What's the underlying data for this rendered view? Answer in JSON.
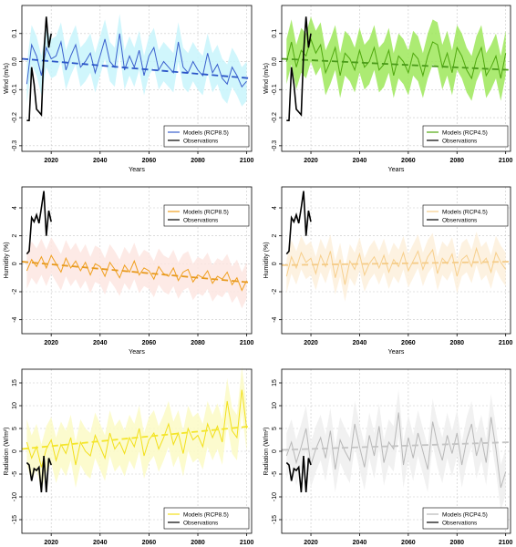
{
  "chart_data": [
    {
      "type": "line",
      "xlabel": "Years",
      "ylabel": "Wind (m/s)",
      "xlim": [
        2008,
        2102
      ],
      "ylim": [
        -0.32,
        0.2
      ],
      "xticks": [
        2020,
        2040,
        2060,
        2080,
        2100
      ],
      "yticks": [
        -0.3,
        -0.2,
        -0.1,
        0.0,
        0.1
      ],
      "ytick_labels": [
        "-0.3",
        "-0.2",
        "-0.1",
        "0.0",
        "0.1"
      ],
      "grid": true,
      "legend_position": "bottom-right",
      "series": [
        {
          "name": "Models (RCP8.5)",
          "color": "#3a5fcd",
          "band_color": "#c8f4fc",
          "trend_color": "#2c56c8",
          "x": [
            2010,
            2012,
            2014,
            2016,
            2018,
            2020,
            2022,
            2024,
            2026,
            2028,
            2030,
            2032,
            2034,
            2036,
            2038,
            2040,
            2042,
            2044,
            2046,
            2048,
            2050,
            2052,
            2054,
            2056,
            2058,
            2060,
            2062,
            2064,
            2066,
            2068,
            2070,
            2072,
            2074,
            2076,
            2078,
            2080,
            2082,
            2084,
            2086,
            2088,
            2090,
            2092,
            2094,
            2096,
            2098,
            2100
          ],
          "values": [
            -0.08,
            0.06,
            0.02,
            -0.05,
            0.05,
            0.01,
            0.02,
            0.07,
            -0.03,
            0.02,
            0.06,
            -0.02,
            0.0,
            0.03,
            -0.04,
            0.02,
            0.08,
            0.0,
            -0.02,
            0.1,
            -0.03,
            0.02,
            -0.02,
            0.04,
            -0.05,
            0.02,
            0.05,
            -0.03,
            0.0,
            -0.02,
            -0.04,
            0.07,
            -0.02,
            -0.04,
            0.0,
            -0.03,
            -0.05,
            0.03,
            -0.04,
            -0.01,
            -0.06,
            -0.08,
            -0.02,
            -0.05,
            -0.09,
            -0.07
          ],
          "band_half_width": 0.07,
          "trend": [
            0.01,
            -0.06
          ]
        },
        {
          "name": "Observations",
          "color": "#000000",
          "x": [
            2010,
            2011,
            2012,
            2013,
            2014,
            2015,
            2016,
            2017,
            2018,
            2019,
            2020
          ],
          "values": [
            -0.21,
            -0.21,
            -0.02,
            -0.08,
            -0.17,
            -0.18,
            -0.19,
            0.03,
            0.16,
            0.05,
            0.1
          ]
        }
      ]
    },
    {
      "type": "line",
      "xlabel": "Years",
      "ylabel": "Wind (m/s)",
      "xlim": [
        2008,
        2102
      ],
      "ylim": [
        -0.32,
        0.2
      ],
      "xticks": [
        2020,
        2040,
        2060,
        2080,
        2100
      ],
      "yticks": [
        -0.3,
        -0.2,
        -0.1,
        0.0,
        0.1
      ],
      "ytick_labels": [
        "-0.3",
        "-0.2",
        "-0.1",
        "0.0",
        "0.1"
      ],
      "grid": true,
      "legend_position": "bottom-right",
      "series": [
        {
          "name": "Models (RCP4.5)",
          "color": "#4fa80e",
          "band_color": "#9ee75a",
          "trend_color": "#4a9a1a",
          "x": [
            2010,
            2012,
            2014,
            2016,
            2018,
            2020,
            2022,
            2024,
            2026,
            2028,
            2030,
            2032,
            2034,
            2036,
            2038,
            2040,
            2042,
            2044,
            2046,
            2048,
            2050,
            2052,
            2054,
            2056,
            2058,
            2060,
            2062,
            2064,
            2066,
            2068,
            2070,
            2072,
            2074,
            2076,
            2078,
            2080,
            2082,
            2084,
            2086,
            2088,
            2090,
            2092,
            2094,
            2096,
            2098,
            2100
          ],
          "values": [
            0.0,
            0.07,
            -0.02,
            0.04,
            0.02,
            0.08,
            0.03,
            0.06,
            -0.04,
            0.0,
            0.05,
            -0.05,
            0.03,
            0.01,
            -0.03,
            0.04,
            -0.02,
            0.0,
            0.05,
            -0.03,
            -0.01,
            0.04,
            -0.05,
            0.02,
            0.0,
            -0.04,
            0.03,
            0.01,
            -0.05,
            0.02,
            0.07,
            0.06,
            -0.02,
            0.03,
            -0.04,
            0.05,
            0.02,
            -0.03,
            -0.06,
            0.01,
            0.05,
            -0.05,
            -0.02,
            0.02,
            -0.06,
            0.03
          ],
          "band_half_width": 0.08,
          "trend": [
            0.01,
            -0.03
          ]
        },
        {
          "name": "Observations",
          "color": "#000000",
          "x": [
            2010,
            2011,
            2012,
            2013,
            2014,
            2015,
            2016,
            2017,
            2018,
            2019,
            2020
          ],
          "values": [
            -0.21,
            -0.21,
            -0.02,
            -0.08,
            -0.17,
            -0.18,
            -0.19,
            0.03,
            0.16,
            0.05,
            0.1
          ]
        }
      ]
    },
    {
      "type": "line",
      "xlabel": "Years",
      "ylabel": "Humidity (%)",
      "xlim": [
        2008,
        2102
      ],
      "ylim": [
        -5,
        5.5
      ],
      "xticks": [
        2020,
        2040,
        2060,
        2080,
        2100
      ],
      "yticks": [
        -4,
        -2,
        0,
        2,
        4
      ],
      "ytick_labels": [
        "-4",
        "-2",
        "0",
        "2",
        "4"
      ],
      "grid": true,
      "legend_position": "top-right",
      "series": [
        {
          "name": "Models (RCP8.5)",
          "color": "#f0a020",
          "band_color": "#fde6e2",
          "trend_color": "#e89a1e",
          "x": [
            2010,
            2012,
            2014,
            2016,
            2018,
            2020,
            2022,
            2024,
            2026,
            2028,
            2030,
            2032,
            2034,
            2036,
            2038,
            2040,
            2042,
            2044,
            2046,
            2048,
            2050,
            2052,
            2054,
            2056,
            2058,
            2060,
            2062,
            2064,
            2066,
            2068,
            2070,
            2072,
            2074,
            2076,
            2078,
            2080,
            2082,
            2084,
            2086,
            2088,
            2090,
            2092,
            2094,
            2096,
            2098,
            2100
          ],
          "values": [
            -0.5,
            0.3,
            -0.2,
            0.5,
            -0.3,
            0.6,
            0.0,
            -0.6,
            0.4,
            -0.3,
            0.2,
            -0.5,
            0.1,
            -0.8,
            0.0,
            -0.2,
            -0.9,
            0.1,
            -0.4,
            -1.0,
            -0.1,
            -0.6,
            0.2,
            -0.8,
            -0.3,
            -0.5,
            -1.1,
            -0.2,
            -0.7,
            -0.9,
            -0.3,
            -1.2,
            -0.6,
            -0.4,
            -1.3,
            -0.8,
            -1.0,
            -0.5,
            -1.4,
            -0.9,
            -1.1,
            -0.6,
            -1.5,
            -1.0,
            -1.9,
            -1.2
          ],
          "band_half_width": 1.3,
          "trend": [
            0.15,
            -1.35
          ]
        },
        {
          "name": "Observations",
          "color": "#000000",
          "x": [
            2010,
            2011,
            2012,
            2013,
            2014,
            2015,
            2016,
            2017,
            2018,
            2019,
            2020
          ],
          "values": [
            0.7,
            0.9,
            3.3,
            3.0,
            3.5,
            2.9,
            4.0,
            5.2,
            2.0,
            3.8,
            3.0
          ]
        }
      ]
    },
    {
      "type": "line",
      "xlabel": "Years",
      "ylabel": "Humidity (%)",
      "xlim": [
        2008,
        2102
      ],
      "ylim": [
        -5,
        5.5
      ],
      "xticks": [
        2020,
        2040,
        2060,
        2080,
        2100
      ],
      "yticks": [
        -4,
        -2,
        0,
        2,
        4
      ],
      "ytick_labels": [
        "-4",
        "-2",
        "0",
        "2",
        "4"
      ],
      "grid": true,
      "legend_position": "top-right",
      "series": [
        {
          "name": "Models (RCP4.5)",
          "color": "#f7cf8c",
          "band_color": "#fdf0dc",
          "trend_color": "#f5cc88",
          "x": [
            2010,
            2012,
            2014,
            2016,
            2018,
            2020,
            2022,
            2024,
            2026,
            2028,
            2030,
            2032,
            2034,
            2036,
            2038,
            2040,
            2042,
            2044,
            2046,
            2048,
            2050,
            2052,
            2054,
            2056,
            2058,
            2060,
            2062,
            2064,
            2066,
            2068,
            2070,
            2072,
            2074,
            2076,
            2078,
            2080,
            2082,
            2084,
            2086,
            2088,
            2090,
            2092,
            2094,
            2096,
            2098,
            2100
          ],
          "values": [
            -0.9,
            0.5,
            -0.3,
            0.8,
            0.1,
            0.4,
            -0.7,
            0.6,
            -0.2,
            0.9,
            -1.0,
            0.3,
            -1.5,
            0.2,
            -0.4,
            0.7,
            -0.8,
            0.0,
            0.5,
            -0.3,
            0.6,
            -0.6,
            0.3,
            -0.2,
            0.8,
            -0.5,
            0.2,
            0.9,
            -0.4,
            0.5,
            1.0,
            -0.7,
            0.4,
            0.0,
            0.7,
            -0.9,
            0.3,
            0.6,
            -0.2,
            1.1,
            0.0,
            0.4,
            -0.6,
            0.8,
            0.1,
            -0.4
          ],
          "band_half_width": 1.2,
          "trend": [
            -0.1,
            0.15
          ]
        },
        {
          "name": "Observations",
          "color": "#000000",
          "x": [
            2010,
            2011,
            2012,
            2013,
            2014,
            2015,
            2016,
            2017,
            2018,
            2019,
            2020
          ],
          "values": [
            0.7,
            0.9,
            3.3,
            3.0,
            3.5,
            2.9,
            4.0,
            5.2,
            2.0,
            3.8,
            3.0
          ]
        }
      ]
    },
    {
      "type": "line",
      "xlabel": "Years",
      "ylabel": "Radiation (W/m²)",
      "xlim": [
        2008,
        2102
      ],
      "ylim": [
        -18,
        18
      ],
      "xticks": [
        2020,
        2040,
        2060,
        2080,
        2100
      ],
      "yticks": [
        -15,
        -10,
        -5,
        0,
        5,
        10,
        15
      ],
      "ytick_labels": [
        "-15",
        "-10",
        "-5",
        "0",
        "5",
        "10",
        "15"
      ],
      "grid": true,
      "legend_position": "bottom-right",
      "series": [
        {
          "name": "Models (RCP8.5)",
          "color": "#f2e01a",
          "band_color": "#fcfac6",
          "trend_color": "#f4e62a",
          "x": [
            2010,
            2012,
            2014,
            2016,
            2018,
            2020,
            2022,
            2024,
            2026,
            2028,
            2030,
            2032,
            2034,
            2036,
            2038,
            2040,
            2042,
            2044,
            2046,
            2048,
            2050,
            2052,
            2054,
            2056,
            2058,
            2060,
            2062,
            2064,
            2066,
            2068,
            2070,
            2072,
            2074,
            2076,
            2078,
            2080,
            2082,
            2084,
            2086,
            2088,
            2090,
            2092,
            2094,
            2096,
            2098,
            2100
          ],
          "values": [
            2.0,
            -1.5,
            1.0,
            -3.5,
            0.5,
            2.5,
            -2.0,
            1.5,
            -0.5,
            3.0,
            -3.0,
            2.0,
            0.0,
            -1.0,
            3.5,
            1.0,
            -1.5,
            4.0,
            0.5,
            2.0,
            -0.5,
            3.0,
            1.0,
            5.0,
            -1.0,
            2.5,
            4.0,
            0.5,
            3.0,
            6.0,
            1.5,
            4.0,
            -0.5,
            5.0,
            2.5,
            3.5,
            1.0,
            6.0,
            3.0,
            5.5,
            2.0,
            11.0,
            4.5,
            3.0,
            13.5,
            5.0
          ],
          "band_half_width": 5,
          "trend": [
            0.5,
            5.5
          ]
        },
        {
          "name": "Observations",
          "color": "#000000",
          "x": [
            2010,
            2011,
            2012,
            2013,
            2014,
            2015,
            2016,
            2017,
            2018,
            2019,
            2020
          ],
          "values": [
            -2.5,
            -3.0,
            -6.5,
            -3.8,
            -4.2,
            -3.5,
            -9.0,
            -1.0,
            -9.0,
            -1.5,
            -3.0
          ]
        }
      ]
    },
    {
      "type": "line",
      "xlabel": "Years",
      "ylabel": "Radiation (W/m²)",
      "xlim": [
        2008,
        2102
      ],
      "ylim": [
        -18,
        18
      ],
      "xticks": [
        2020,
        2040,
        2060,
        2080,
        2100
      ],
      "yticks": [
        -15,
        -10,
        -5,
        0,
        5,
        10,
        15
      ],
      "ytick_labels": [
        "-15",
        "-10",
        "-5",
        "0",
        "5",
        "10",
        "15"
      ],
      "grid": true,
      "legend_position": "bottom-right",
      "series": [
        {
          "name": "Models (RCP4.5)",
          "color": "#b8b8b8",
          "band_color": "#eeeeee",
          "trend_color": "#c4c4c4",
          "x": [
            2010,
            2012,
            2014,
            2016,
            2018,
            2020,
            2022,
            2024,
            2026,
            2028,
            2030,
            2032,
            2034,
            2036,
            2038,
            2040,
            2042,
            2044,
            2046,
            2048,
            2050,
            2052,
            2054,
            2056,
            2058,
            2060,
            2062,
            2064,
            2066,
            2068,
            2070,
            2072,
            2074,
            2076,
            2078,
            2080,
            2082,
            2084,
            2086,
            2088,
            2090,
            2092,
            2094,
            2096,
            2098,
            2100
          ],
          "values": [
            -1.0,
            2.0,
            -2.5,
            1.0,
            5.0,
            -3.0,
            0.5,
            3.0,
            -1.5,
            4.5,
            -4.0,
            2.5,
            0.0,
            -2.0,
            6.0,
            1.0,
            -3.5,
            3.5,
            -1.0,
            5.5,
            -2.5,
            2.0,
            0.5,
            8.5,
            -3.0,
            3.0,
            -1.5,
            4.0,
            0.0,
            -4.0,
            6.5,
            1.5,
            -2.0,
            3.5,
            -0.5,
            4.0,
            -3.0,
            2.5,
            6.0,
            -1.0,
            3.0,
            -2.5,
            7.5,
            0.5,
            -8.0,
            -4.5
          ],
          "band_half_width": 5,
          "trend": [
            0.3,
            2.0
          ]
        },
        {
          "name": "Observations",
          "color": "#000000",
          "x": [
            2010,
            2011,
            2012,
            2013,
            2014,
            2015,
            2016,
            2017,
            2018,
            2019,
            2020
          ],
          "values": [
            -2.5,
            -3.0,
            -6.5,
            -3.8,
            -4.2,
            -3.5,
            -9.0,
            -1.0,
            -9.0,
            -1.5,
            -3.0
          ]
        }
      ]
    }
  ]
}
